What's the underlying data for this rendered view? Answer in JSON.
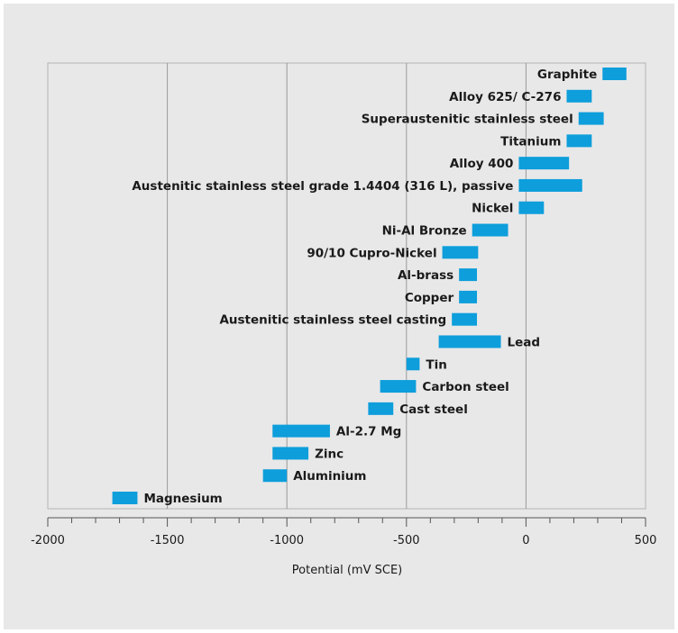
{
  "chart_data": {
    "type": "bar",
    "orientation": "horizontal-range",
    "title": "",
    "xlabel": "Potential (mV SCE)",
    "ylabel": "",
    "xlim": [
      -2000,
      500
    ],
    "x_ticks": [
      -2000,
      -1500,
      -1000,
      -500,
      0,
      500
    ],
    "x_tick_labels": [
      "-2000",
      "-1500",
      "-1000",
      "-500",
      "0",
      "500"
    ],
    "grid": "vertical major gridlines",
    "bar_color": "#0d9edb",
    "series": [
      {
        "name": "Graphite",
        "low": 320,
        "high": 420,
        "label_side": "left"
      },
      {
        "name": "Alloy 625/ C-276",
        "low": 170,
        "high": 275,
        "label_side": "left"
      },
      {
        "name": "Superaustenitic stainless steel",
        "low": 220,
        "high": 325,
        "label_side": "left"
      },
      {
        "name": "Titanium",
        "low": 170,
        "high": 275,
        "label_side": "left"
      },
      {
        "name": "Alloy 400",
        "low": -30,
        "high": 180,
        "label_side": "left"
      },
      {
        "name": "Austenitic stainless steel grade 1.4404 (316 L), passive",
        "low": -30,
        "high": 235,
        "label_side": "left"
      },
      {
        "name": "Nickel",
        "low": -30,
        "high": 75,
        "label_side": "left"
      },
      {
        "name": "Ni-Al Bronze",
        "low": -225,
        "high": -75,
        "label_side": "left"
      },
      {
        "name": "90/10 Cupro-Nickel",
        "low": -350,
        "high": -200,
        "label_side": "left"
      },
      {
        "name": "Al-brass",
        "low": -280,
        "high": -205,
        "label_side": "left"
      },
      {
        "name": "Copper",
        "low": -280,
        "high": -205,
        "label_side": "left"
      },
      {
        "name": "Austenitic stainless steel casting",
        "low": -310,
        "high": -205,
        "label_side": "left"
      },
      {
        "name": "Lead",
        "low": -365,
        "high": -105,
        "label_side": "right"
      },
      {
        "name": "Tin",
        "low": -500,
        "high": -445,
        "label_side": "right"
      },
      {
        "name": "Carbon steel",
        "low": -610,
        "high": -460,
        "label_side": "right"
      },
      {
        "name": "Cast steel",
        "low": -660,
        "high": -555,
        "label_side": "right"
      },
      {
        "name": "Al-2.7 Mg",
        "low": -1060,
        "high": -820,
        "label_side": "right"
      },
      {
        "name": "Zinc",
        "low": -1060,
        "high": -910,
        "label_side": "right"
      },
      {
        "name": "Aluminium",
        "low": -1100,
        "high": -1000,
        "label_side": "right"
      },
      {
        "name": "Magnesium",
        "low": -1730,
        "high": -1625,
        "label_side": "right"
      }
    ]
  }
}
